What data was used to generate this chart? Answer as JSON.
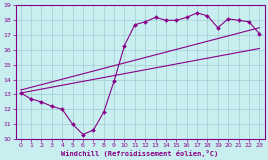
{
  "xlabel": "Windchill (Refroidissement éolien,°C)",
  "background_color": "#c8eef0",
  "grid_color": "#a0ccd0",
  "line_color": "#880088",
  "xlim": [
    -0.5,
    23.5
  ],
  "ylim": [
    10,
    19
  ],
  "xticks": [
    0,
    1,
    2,
    3,
    4,
    5,
    6,
    7,
    8,
    9,
    10,
    11,
    12,
    13,
    14,
    15,
    16,
    17,
    18,
    19,
    20,
    21,
    22,
    23
  ],
  "yticks": [
    10,
    11,
    12,
    13,
    14,
    15,
    16,
    17,
    18,
    19
  ],
  "curve1_x": [
    0,
    1,
    2,
    3,
    4,
    5,
    6,
    7,
    8,
    9,
    10,
    11,
    12,
    13,
    14,
    15,
    16,
    17,
    18,
    19,
    20,
    21,
    22,
    23
  ],
  "curve1_y": [
    13.1,
    12.7,
    12.5,
    12.2,
    12.0,
    11.0,
    10.3,
    10.6,
    11.8,
    13.9,
    16.3,
    17.7,
    17.9,
    18.2,
    18.0,
    18.0,
    18.2,
    18.5,
    18.3,
    17.5,
    18.1,
    18.0,
    17.9,
    17.1
  ],
  "line2_x": [
    0,
    23
  ],
  "line2_y": [
    13.1,
    16.1
  ],
  "line3_x": [
    0,
    23
  ],
  "line3_y": [
    13.3,
    17.5
  ]
}
